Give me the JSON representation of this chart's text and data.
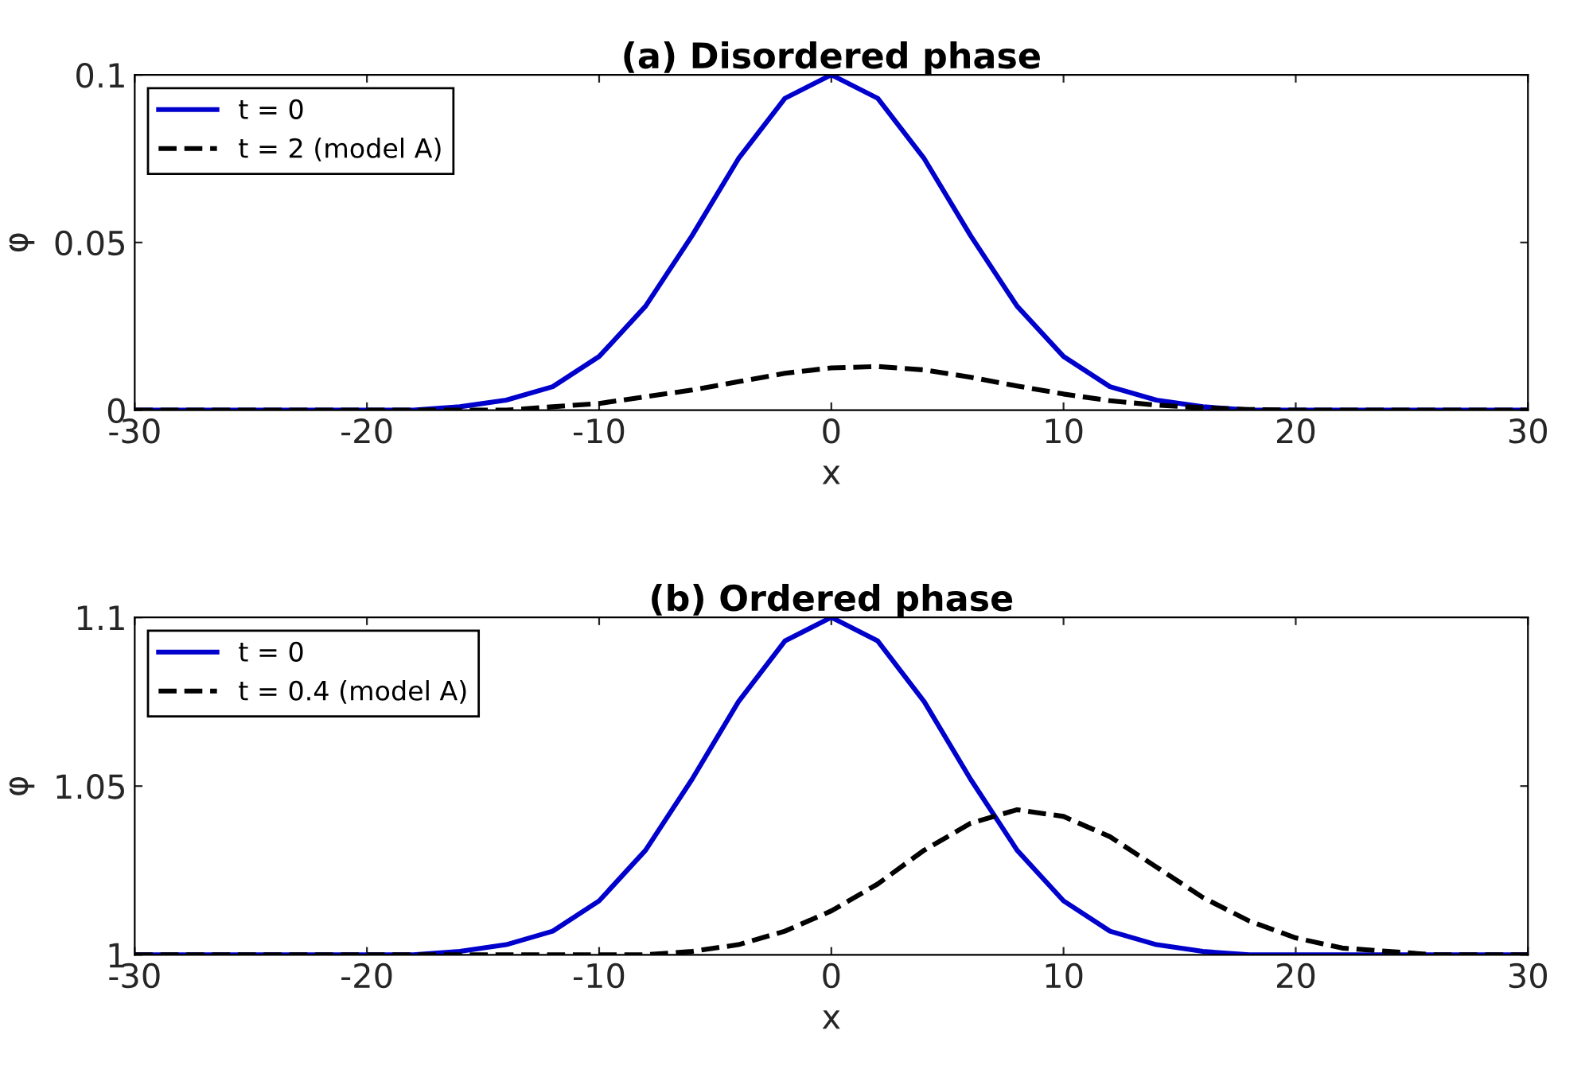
{
  "chart_data": [
    {
      "type": "line",
      "title": "(a) Disordered phase",
      "xlabel": "x",
      "ylabel": "φ",
      "xlim": [
        -30,
        30
      ],
      "xticks": [
        -30,
        -20,
        -10,
        0,
        10,
        20,
        30
      ],
      "ylim": [
        0,
        0.1
      ],
      "yticks": [
        0,
        0.05,
        0.1
      ],
      "grid": false,
      "legend": "top left",
      "series": [
        {
          "name": "t = 0",
          "color": "#0000cc",
          "line_style": "solid",
          "x": [
            -30,
            -26,
            -22,
            -18,
            -16,
            -14,
            -12,
            -10,
            -8,
            -6,
            -4,
            -2,
            0,
            2,
            4,
            6,
            8,
            10,
            12,
            14,
            16,
            18,
            22,
            26,
            30
          ],
          "values": [
            0,
            0,
            0,
            0,
            0.001,
            0.003,
            0.007,
            0.016,
            0.031,
            0.052,
            0.075,
            0.093,
            0.1,
            0.093,
            0.075,
            0.052,
            0.031,
            0.016,
            0.007,
            0.003,
            0.001,
            0,
            0,
            0,
            0
          ]
        },
        {
          "name": "t = 2 (model A)",
          "color": "#000000",
          "line_style": "dashed",
          "x": [
            -30,
            -24,
            -18,
            -14,
            -12,
            -10,
            -8,
            -6,
            -4,
            -2,
            0,
            2,
            4,
            6,
            8,
            10,
            12,
            14,
            16,
            18,
            20,
            24,
            30
          ],
          "values": [
            0,
            0,
            0,
            0,
            0.001,
            0.002,
            0.004,
            0.006,
            0.0085,
            0.011,
            0.0126,
            0.013,
            0.012,
            0.0098,
            0.0072,
            0.0048,
            0.0028,
            0.0015,
            0.0007,
            0.0002,
            0,
            0,
            0
          ]
        }
      ]
    },
    {
      "type": "line",
      "title": "(b) Ordered phase",
      "xlabel": "x",
      "ylabel": "φ",
      "xlim": [
        -30,
        30
      ],
      "xticks": [
        -30,
        -20,
        -10,
        0,
        10,
        20,
        30
      ],
      "ylim": [
        1,
        1.1
      ],
      "yticks": [
        1,
        1.05,
        1.1
      ],
      "grid": false,
      "legend": "top left",
      "series": [
        {
          "name": "t = 0",
          "color": "#0000cc",
          "line_style": "solid",
          "x": [
            -30,
            -26,
            -22,
            -18,
            -16,
            -14,
            -12,
            -10,
            -8,
            -6,
            -4,
            -2,
            0,
            2,
            4,
            6,
            8,
            10,
            12,
            14,
            16,
            18,
            22,
            26,
            30
          ],
          "values": [
            1,
            1,
            1,
            1,
            1.001,
            1.003,
            1.007,
            1.016,
            1.031,
            1.052,
            1.075,
            1.093,
            1.1,
            1.093,
            1.075,
            1.052,
            1.031,
            1.016,
            1.007,
            1.003,
            1.001,
            1,
            1,
            1,
            1
          ]
        },
        {
          "name": "t = 0.4 (model A)",
          "color": "#000000",
          "line_style": "dashed",
          "x": [
            -30,
            -20,
            -12,
            -10,
            -8,
            -6,
            -4,
            -2,
            0,
            2,
            4,
            6,
            8,
            10,
            12,
            14,
            16,
            18,
            20,
            22,
            24,
            26,
            30
          ],
          "values": [
            1,
            1,
            1,
            1,
            1,
            1.001,
            1.003,
            1.007,
            1.013,
            1.021,
            1.031,
            1.039,
            1.043,
            1.041,
            1.035,
            1.026,
            1.017,
            1.01,
            1.005,
            1.002,
            1.001,
            1,
            1
          ]
        }
      ]
    }
  ]
}
